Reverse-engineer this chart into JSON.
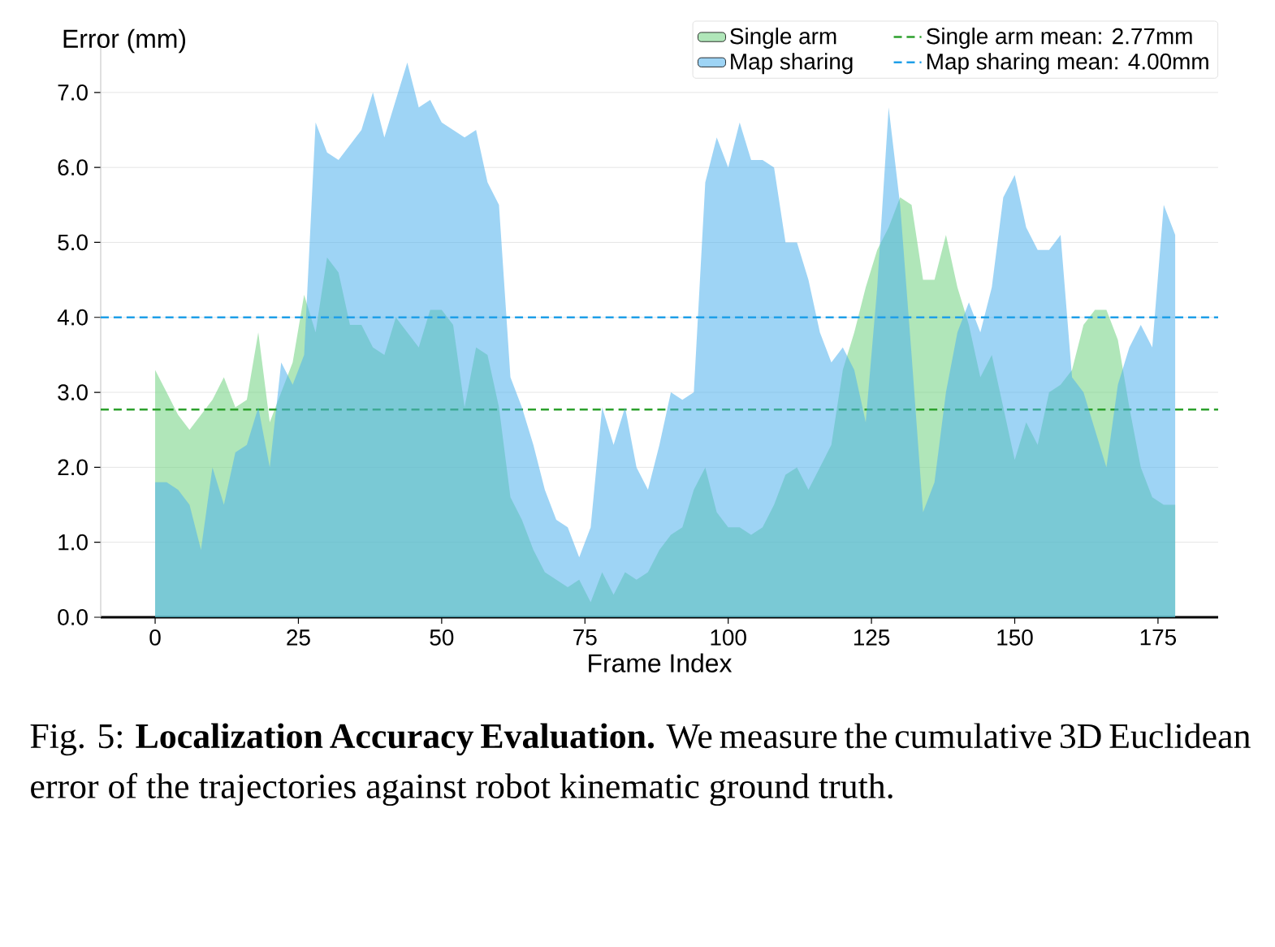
{
  "chart_data": {
    "type": "area",
    "x": [
      0,
      2,
      4,
      6,
      8,
      10,
      12,
      14,
      16,
      18,
      20,
      22,
      24,
      26,
      28,
      30,
      32,
      34,
      36,
      38,
      40,
      42,
      44,
      46,
      48,
      50,
      52,
      54,
      56,
      58,
      60,
      62,
      64,
      66,
      68,
      70,
      72,
      74,
      76,
      78,
      80,
      82,
      84,
      86,
      88,
      90,
      92,
      94,
      96,
      98,
      100,
      102,
      104,
      106,
      108,
      110,
      112,
      114,
      116,
      118,
      120,
      122,
      124,
      126,
      128,
      130,
      132,
      134,
      136,
      138,
      140,
      142,
      144,
      146,
      148,
      150,
      152,
      154,
      156,
      158,
      160,
      162,
      164,
      166,
      168,
      170,
      172,
      174,
      176,
      178
    ],
    "series": [
      {
        "name": "Single arm",
        "color": "#6fd17f",
        "values": [
          3.3,
          3.0,
          2.7,
          2.5,
          2.7,
          2.9,
          3.2,
          2.8,
          2.9,
          3.8,
          2.6,
          3.0,
          3.4,
          4.3,
          3.8,
          4.8,
          4.6,
          3.9,
          3.9,
          3.6,
          3.5,
          4.0,
          3.8,
          3.6,
          4.1,
          4.1,
          3.9,
          2.8,
          3.6,
          3.5,
          2.8,
          1.6,
          1.3,
          0.9,
          0.6,
          0.5,
          0.4,
          0.5,
          0.2,
          0.6,
          0.3,
          0.6,
          0.5,
          0.6,
          0.9,
          1.1,
          1.2,
          1.7,
          2.0,
          1.4,
          1.2,
          1.2,
          1.1,
          1.2,
          1.5,
          1.9,
          2.0,
          1.7,
          2.0,
          2.3,
          3.3,
          3.8,
          4.4,
          4.9,
          5.2,
          5.6,
          5.5,
          4.5,
          4.5,
          5.1,
          4.4,
          3.9,
          3.2,
          3.5,
          2.8,
          2.1,
          2.6,
          2.3,
          3.0,
          3.1,
          3.3,
          3.9,
          4.1,
          4.1,
          3.7,
          2.8,
          2.0,
          1.6,
          1.5,
          1.5
        ]
      },
      {
        "name": "Map sharing",
        "color": "#4fb0ec",
        "values": [
          1.8,
          1.8,
          1.7,
          1.5,
          0.9,
          2.0,
          1.5,
          2.2,
          2.3,
          2.8,
          2.0,
          3.4,
          3.1,
          3.5,
          6.6,
          6.2,
          6.1,
          6.3,
          6.5,
          7.0,
          6.4,
          6.9,
          7.4,
          6.8,
          6.9,
          6.6,
          6.5,
          6.4,
          6.5,
          5.8,
          5.5,
          3.2,
          2.8,
          2.3,
          1.7,
          1.3,
          1.2,
          0.8,
          1.2,
          2.8,
          2.3,
          2.8,
          2.0,
          1.7,
          2.3,
          3.0,
          2.9,
          3.0,
          5.8,
          6.4,
          6.0,
          6.6,
          6.1,
          6.1,
          6.0,
          5.0,
          5.0,
          4.5,
          3.8,
          3.4,
          3.6,
          3.3,
          2.6,
          4.4,
          6.8,
          5.5,
          3.5,
          1.4,
          1.8,
          3.0,
          3.8,
          4.2,
          3.8,
          4.4,
          5.6,
          5.9,
          5.2,
          4.9,
          4.9,
          5.1,
          3.2,
          3.0,
          2.5,
          2.0,
          3.1,
          3.6,
          3.9,
          3.6,
          5.5,
          5.1
        ]
      }
    ],
    "xlabel": "Frame Index",
    "ylabel": "Error (mm)",
    "xlim": [
      -9.5,
      185.5
    ],
    "ylim": [
      0,
      7.8
    ],
    "xticks": [
      0,
      25,
      50,
      75,
      100,
      125,
      150,
      175
    ],
    "yticks": [
      {
        "value": 0,
        "label": "0.0"
      },
      {
        "value": 1,
        "label": "1.0"
      },
      {
        "value": 2,
        "label": "2.0"
      },
      {
        "value": 3,
        "label": "3.0"
      },
      {
        "value": 4,
        "label": "4.0"
      },
      {
        "value": 5,
        "label": "5.0"
      },
      {
        "value": 6,
        "label": "6.0"
      },
      {
        "value": 7,
        "label": "7.0"
      }
    ],
    "grid": "y",
    "legend": "top right",
    "ref_lines": [
      {
        "axis": "y",
        "value": 2.77,
        "label": "Single arm mean: 2.77mm",
        "color": "#2ca02c",
        "line_style": "dashed"
      },
      {
        "axis": "y",
        "value": 4.0,
        "label": "Map sharing mean: 4.00mm",
        "color": "#1f9fe8",
        "line_style": "dashed"
      }
    ],
    "annotations": [
      "Fig. 5: **Localization Accuracy Evaluation.** We measure the cumulative 3D Euclidean error of the trajectories against robot kinematic ground truth."
    ]
  }
}
